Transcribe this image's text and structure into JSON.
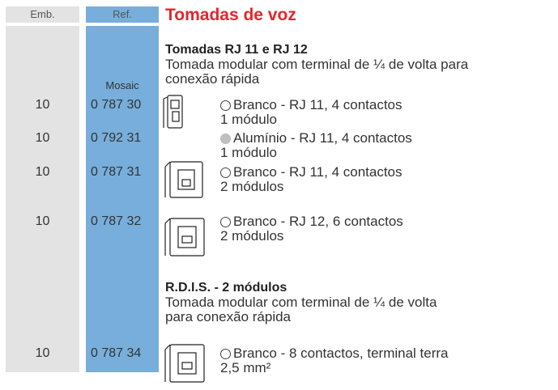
{
  "header": {
    "emb": "Emb.",
    "ref": "Ref.",
    "title": "Tomadas de voz"
  },
  "sections": [
    {
      "title": "Tomadas RJ 11 e RJ 12",
      "description": [
        "Tomada modular com terminal de ¼ de volta para",
        "conexão rápida"
      ],
      "range": "Mosaic",
      "items": [
        {
          "emb": "10",
          "ref": "0 787 30",
          "description": "Branco - RJ 11, 4 contactos",
          "size": "1 módulo"
        },
        {
          "emb": "10",
          "ref": "0 792 31",
          "description": "Alumínio - RJ 11, 4 contactos",
          "size": "1 módulo"
        },
        {
          "emb": "10",
          "ref": "0 787 31",
          "description": "Branco - RJ 11, 4 contactos",
          "size": "2 módulos"
        },
        {
          "emb": "10",
          "ref": "0 787 32",
          "description": "Branco - RJ 12, 6 contactos",
          "size": "2 módulos"
        }
      ]
    },
    {
      "title": "R.D.I.S. - 2 módulos",
      "description": [
        "Tomada modular com terminal de ¼ de volta",
        "para conexão rápida"
      ],
      "items": [
        {
          "emb": "10",
          "ref": "0 787 34",
          "description": "Branco - 8 contactos, terminal terra",
          "size": "2,5 mm²"
        }
      ]
    }
  ]
}
